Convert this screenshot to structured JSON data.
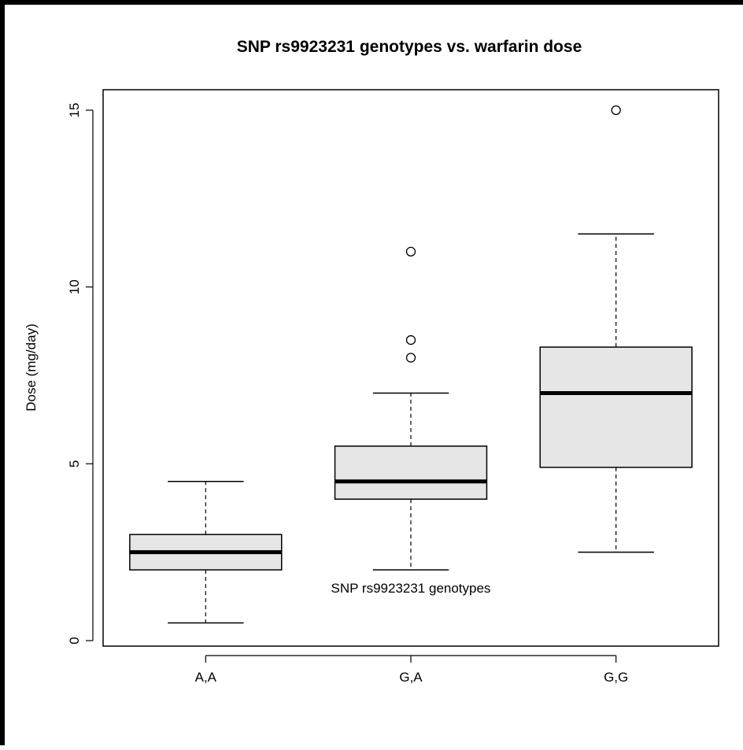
{
  "chart_data": {
    "type": "boxplot",
    "title": "SNP rs9923231 genotypes vs. warfarin dose",
    "xlabel": "SNP rs9923231 genotypes",
    "ylabel": "Dose (mg/day)",
    "categories": [
      "A,A",
      "G,A",
      "G,G"
    ],
    "ylim": [
      -0.3,
      15.6
    ],
    "yticks": [
      0,
      5,
      10,
      15
    ],
    "ytick_labels": [
      "0",
      "5",
      "10",
      "15"
    ],
    "boxes": [
      {
        "category": "A,A",
        "whisker_low": 0.5,
        "q1": 2.0,
        "median": 2.5,
        "q3": 3.0,
        "whisker_high": 4.5,
        "outliers": []
      },
      {
        "category": "G,A",
        "whisker_low": 2.0,
        "q1": 4.0,
        "median": 4.5,
        "q3": 5.5,
        "whisker_high": 7.0,
        "outliers": [
          8.0,
          8.5,
          11.0
        ]
      },
      {
        "category": "G,G",
        "whisker_low": 2.5,
        "q1": 4.9,
        "median": 7.0,
        "q3": 8.3,
        "whisker_high": 11.5,
        "outliers": [
          15.0
        ]
      }
    ],
    "box_fill": "#e6e6e6",
    "line_color": "#000000",
    "grid": false,
    "legend": false
  }
}
